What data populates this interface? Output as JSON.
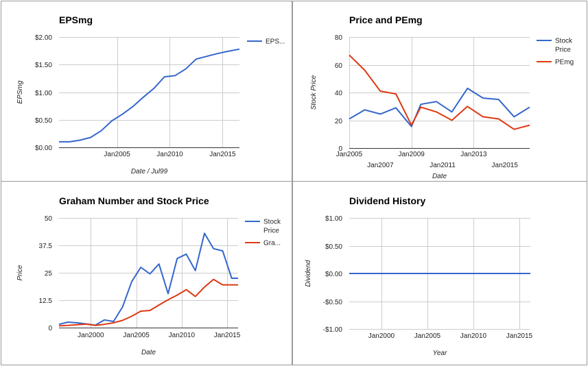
{
  "chart_data": [
    {
      "id": "epsmg",
      "type": "line",
      "title": "EPSmg",
      "xlabel": "Date / Jul99",
      "ylabel": "EPSmg",
      "xlim": [
        1999.5,
        2016.6
      ],
      "ylim": [
        0,
        2
      ],
      "yticks": [
        0,
        0.5,
        1.0,
        1.5,
        2.0
      ],
      "ytick_labels": [
        "$0.00",
        "$0.50",
        "$1.00",
        "$1.50",
        "$2.00"
      ],
      "xticks": [
        2005,
        2010,
        2015
      ],
      "xtick_labels": [
        "Jan2005",
        "Jan2010",
        "Jan2015"
      ],
      "vgrid": [
        2005,
        2010,
        2015
      ],
      "legend": "right",
      "series": [
        {
          "name": "EPS...",
          "color": "#3366cc",
          "x": [
            1999.5,
            2000.5,
            2001.5,
            2002.5,
            2003.5,
            2004.5,
            2005.5,
            2006.5,
            2007.5,
            2008.5,
            2009.5,
            2010.5,
            2011.5,
            2012.5,
            2013.5,
            2014.5,
            2015.5,
            2016.6
          ],
          "y": [
            0.1,
            0.1,
            0.13,
            0.18,
            0.3,
            0.48,
            0.6,
            0.74,
            0.91,
            1.07,
            1.28,
            1.3,
            1.42,
            1.6,
            1.65,
            1.7,
            1.74,
            1.78
          ]
        }
      ]
    },
    {
      "id": "price-pemg",
      "type": "line",
      "title": "Price and PEmg",
      "xlabel": "Date",
      "ylabel": "Stock Price",
      "xlim": [
        2005,
        2016.6
      ],
      "ylim": [
        0,
        80
      ],
      "yticks": [
        0,
        20,
        40,
        60,
        80
      ],
      "ytick_labels": [
        "0",
        "20",
        "40",
        "60",
        "80"
      ],
      "xticks": [
        2005,
        2007,
        2009,
        2011,
        2013,
        2015
      ],
      "xtick_labels": [
        "Jan2005",
        "Jan2007",
        "Jan2009",
        "Jan2011",
        "Jan2013",
        "Jan2015"
      ],
      "vgrid": [
        2005,
        2009,
        2013
      ],
      "legend": "right",
      "series": [
        {
          "name": "Stock Price",
          "color": "#3366cc",
          "x": [
            2005,
            2006,
            2007,
            2008,
            2009,
            2009.6,
            2010.6,
            2011.6,
            2012.6,
            2013.6,
            2014.6,
            2015.6,
            2016.6
          ],
          "y": [
            21,
            27.5,
            24.5,
            29,
            15.5,
            31.5,
            33.5,
            26,
            43,
            36,
            35,
            22.5,
            29.5
          ]
        },
        {
          "name": "PEmg",
          "color": "#dc3912",
          "x": [
            2005,
            2006,
            2007,
            2008,
            2009,
            2009.6,
            2010.6,
            2011.6,
            2012.6,
            2013.6,
            2014.6,
            2015.6,
            2016.6
          ],
          "y": [
            67,
            56,
            41,
            39,
            16.5,
            29.5,
            26,
            20,
            30,
            22.5,
            21,
            13.5,
            16.5
          ]
        }
      ]
    },
    {
      "id": "graham",
      "type": "line",
      "title": "Graham Number and Stock Price",
      "xlabel": "Date",
      "ylabel": "Price",
      "xlim": [
        1996.5,
        2016.2
      ],
      "ylim": [
        0,
        50
      ],
      "yticks": [
        0,
        12.5,
        25,
        37.5,
        50
      ],
      "ytick_labels": [
        "0",
        "12.5",
        "25",
        "37.5",
        "50"
      ],
      "xticks": [
        2000,
        2005,
        2010,
        2015
      ],
      "xtick_labels": [
        "Jan2000",
        "Jan2005",
        "Jan2010",
        "Jan2015"
      ],
      "vgrid": [
        2000,
        2005,
        2010,
        2015
      ],
      "legend": "right",
      "series": [
        {
          "name": "Stock Price",
          "color": "#3366cc",
          "x": [
            1996.5,
            1997.5,
            1998.5,
            1999.5,
            2000.5,
            2001.5,
            2002.5,
            2003.5,
            2004.5,
            2005.5,
            2006.5,
            2007.5,
            2008.5,
            2009.5,
            2010.5,
            2011.5,
            2012.5,
            2013.5,
            2014.5,
            2015.5,
            2016.2
          ],
          "y": [
            1.5,
            2.5,
            2.2,
            1.7,
            1.1,
            3.5,
            2.8,
            9.5,
            21,
            27.5,
            24.5,
            29,
            15.5,
            31.5,
            33.5,
            26,
            43,
            36,
            35,
            22.5,
            22.5
          ]
        },
        {
          "name": "Gra...",
          "color": "#dc3912",
          "x": [
            1996.5,
            1997.5,
            1998.5,
            1999.5,
            2000.5,
            2001.5,
            2002.5,
            2003.5,
            2004.5,
            2005.5,
            2006.5,
            2007.5,
            2008.5,
            2009.5,
            2010.5,
            2011.5,
            2012.5,
            2013.5,
            2014.5,
            2015.5,
            2016.2
          ],
          "y": [
            0.8,
            1.0,
            1.3,
            1.6,
            1.0,
            1.5,
            2.2,
            3.3,
            5.2,
            7.5,
            7.8,
            10.3,
            12.7,
            14.8,
            17.3,
            14.2,
            18.5,
            22,
            19.5,
            19.5,
            19.5
          ]
        }
      ]
    },
    {
      "id": "dividend",
      "type": "line",
      "title": "Dividend History",
      "xlabel": "Year",
      "ylabel": "Dividend",
      "xlim": [
        1996.5,
        2016.2
      ],
      "ylim": [
        -1,
        1
      ],
      "yticks": [
        -1,
        -0.5,
        0,
        0.5,
        1
      ],
      "ytick_labels": [
        "-$1.00",
        "-$0.50",
        "$0.00",
        "$0.50",
        "$1.00"
      ],
      "xticks": [
        2000,
        2005,
        2010,
        2015
      ],
      "xtick_labels": [
        "Jan2000",
        "Jan2005",
        "Jan2010",
        "Jan2015"
      ],
      "vgrid": [
        2000,
        2005,
        2010,
        2015
      ],
      "legend": "none",
      "series": [
        {
          "name": "",
          "color": "#3366cc",
          "x": [
            1996.5,
            2016.2
          ],
          "y": [
            0,
            0
          ]
        }
      ]
    }
  ]
}
